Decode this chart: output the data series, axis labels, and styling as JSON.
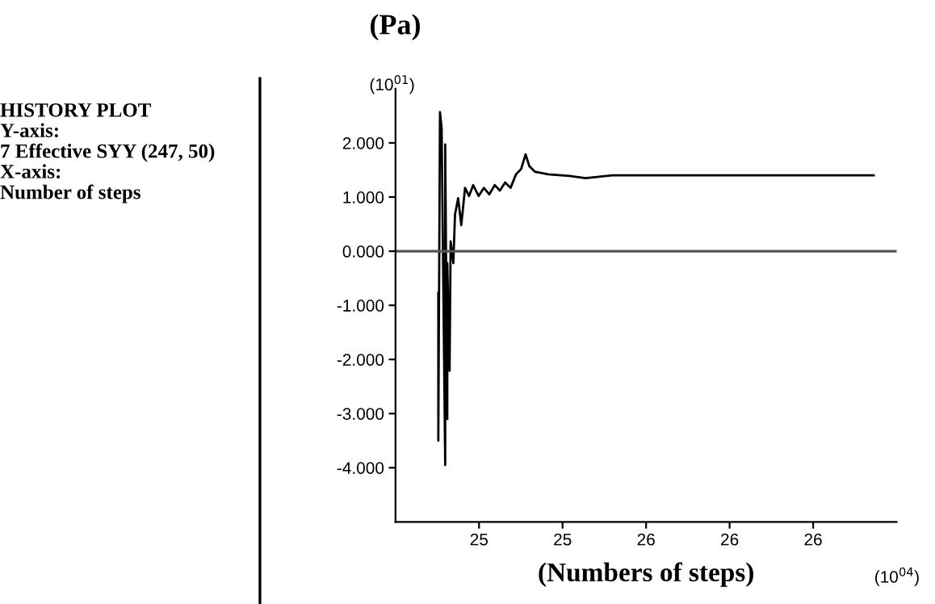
{
  "chart_data": {
    "type": "line",
    "ylabel": "(Pa)",
    "xlabel": "(Numbers of steps)",
    "annotations": [
      "HISTORY PLOT\nY-axis:\n7 Effective SYY (247, 50)\nX-axis:\nNumber of steps",
      "(10$^{01}$)",
      "(10$^{04}$)"
    ],
    "series": [
      {
        "color": "#000000",
        "x": [
          24.605,
          24.605,
          24.613,
          24.621,
          24.638,
          24.638,
          24.648,
          24.648,
          24.659,
          24.664,
          24.677,
          24.685,
          24.7,
          24.715,
          24.733,
          24.752,
          24.772,
          24.798,
          24.823,
          24.849,
          24.875,
          24.9,
          24.925,
          24.951,
          24.977,
          25.002,
          25.023,
          25.041,
          25.067,
          25.131,
          25.233,
          25.31,
          25.438,
          26.69
        ],
        "values": [
          -0.77,
          -3.5,
          2.57,
          2.27,
          -3.95,
          1.97,
          -3.1,
          -0.22,
          -2.21,
          0.18,
          -0.22,
          0.68,
          0.98,
          0.48,
          1.17,
          1.02,
          1.22,
          1.02,
          1.17,
          1.05,
          1.22,
          1.12,
          1.27,
          1.17,
          1.42,
          1.52,
          1.79,
          1.57,
          1.47,
          1.42,
          1.39,
          1.35,
          1.4,
          1.4
        ]
      }
    ],
    "ref_lines": [
      {
        "axis": "y",
        "value": 0,
        "color": "#555555"
      }
    ],
    "xlim": [
      24.4,
      26.8
    ],
    "ylim": [
      -5,
      3
    ],
    "xticks": [
      {
        "value": 24.8,
        "label": "25"
      },
      {
        "value": 25.2,
        "label": "25"
      },
      {
        "value": 25.6,
        "label": "26"
      },
      {
        "value": 26.0,
        "label": "26"
      },
      {
        "value": 26.4,
        "label": "26"
      }
    ],
    "yticks": [
      {
        "value": 2,
        "label": "2.000"
      },
      {
        "value": 1,
        "label": "1.000"
      },
      {
        "value": 0,
        "label": "0.000"
      },
      {
        "value": -1,
        "label": "-1.000"
      },
      {
        "value": -2,
        "label": "-2.000"
      },
      {
        "value": -3,
        "label": "-3.000"
      },
      {
        "value": -4,
        "label": "-4.000"
      }
    ],
    "grid": false,
    "legend": false,
    "marker": "none",
    "line_style": "solid"
  }
}
